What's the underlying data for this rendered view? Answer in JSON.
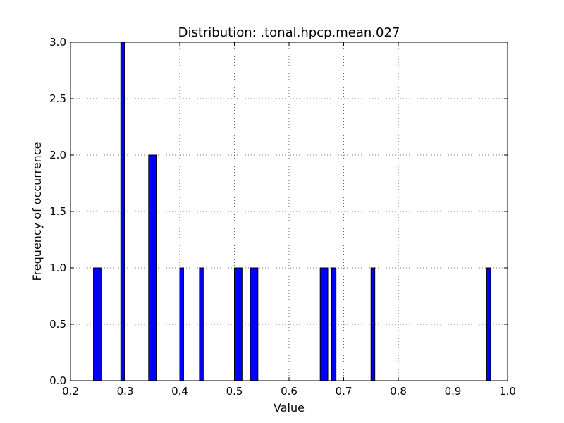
{
  "chart_data": {
    "type": "bar",
    "title": "Distribution: .tonal.hpcp.mean.027",
    "xlabel": "Value",
    "ylabel": "Frequency of occurrence",
    "xlim": [
      0.2,
      1.0
    ],
    "ylim": [
      0.0,
      3.0
    ],
    "x_ticks": [
      "0.2",
      "0.3",
      "0.4",
      "0.5",
      "0.6",
      "0.7",
      "0.8",
      "0.9",
      "1.0"
    ],
    "y_ticks": [
      "0.0",
      "0.5",
      "1.0",
      "1.5",
      "2.0",
      "2.5",
      "3.0"
    ],
    "grid": true,
    "bar_color": "#0000ff",
    "bar_edge_color": "#000000",
    "bins": [
      {
        "x0": 0.242,
        "x1": 0.256,
        "value": 1
      },
      {
        "x0": 0.292,
        "x1": 0.299,
        "value": 3
      },
      {
        "x0": 0.343,
        "x1": 0.357,
        "value": 2
      },
      {
        "x0": 0.4,
        "x1": 0.407,
        "value": 1
      },
      {
        "x0": 0.436,
        "x1": 0.443,
        "value": 1
      },
      {
        "x0": 0.5,
        "x1": 0.514,
        "value": 1
      },
      {
        "x0": 0.529,
        "x1": 0.543,
        "value": 1
      },
      {
        "x0": 0.657,
        "x1": 0.671,
        "value": 1
      },
      {
        "x0": 0.678,
        "x1": 0.686,
        "value": 1
      },
      {
        "x0": 0.75,
        "x1": 0.757,
        "value": 1
      },
      {
        "x0": 0.962,
        "x1": 0.969,
        "value": 1
      }
    ]
  }
}
